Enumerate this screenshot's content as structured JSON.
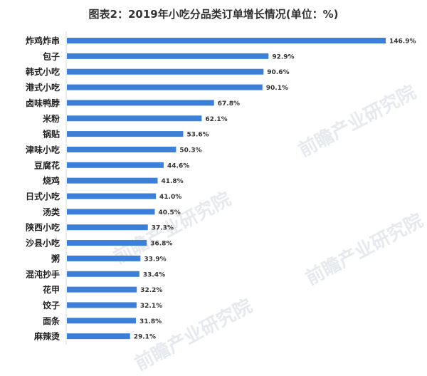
{
  "chart_data": {
    "type": "bar",
    "orientation": "horizontal",
    "title": "图表2：2019年小吃分品类订单增长情况(单位：%)",
    "categories": [
      "炸鸡炸串",
      "包子",
      "韩式小吃",
      "港式小吃",
      "卤味鸭脖",
      "米粉",
      "锅贴",
      "津味小吃",
      "豆腐花",
      "烧鸡",
      "日式小吃",
      "汤类",
      "陕西小吃",
      "沙县小吃",
      "粥",
      "混沌抄手",
      "花甲",
      "饺子",
      "面条",
      "麻辣烫"
    ],
    "values": [
      146.9,
      92.9,
      90.6,
      90.1,
      67.8,
      62.1,
      53.6,
      50.3,
      44.6,
      41.8,
      41.0,
      40.5,
      37.3,
      36.8,
      33.9,
      33.4,
      32.2,
      32.1,
      31.8,
      29.1
    ],
    "data_labels": [
      "146.9%",
      "92.9%",
      "90.6%",
      "90.1%",
      "67.8%",
      "62.1%",
      "53.6%",
      "50.3%",
      "44.6%",
      "41.8%",
      "41.0%",
      "40.5%",
      "37.3%",
      "36.8%",
      "33.9%",
      "33.4%",
      "32.2%",
      "32.1%",
      "31.8%",
      "29.1%"
    ],
    "xlim": [
      0,
      146.9
    ],
    "grid": false,
    "bar_color": "#3c7fd9"
  },
  "watermark": "前瞻产业研究院"
}
